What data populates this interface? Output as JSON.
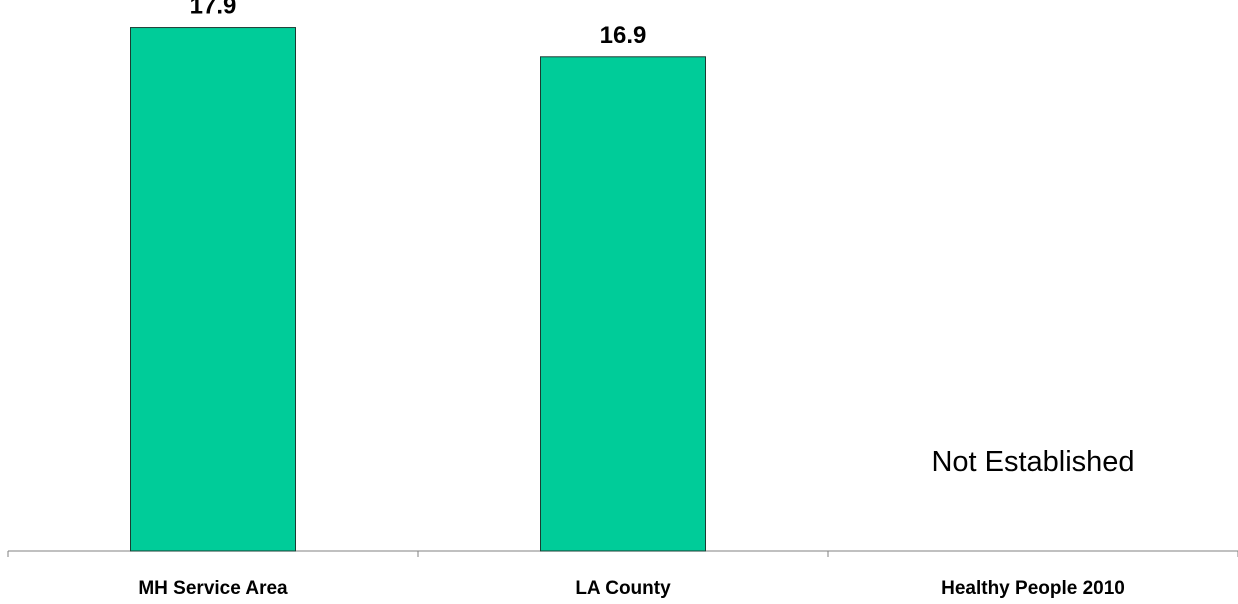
{
  "chart_data": {
    "type": "bar",
    "categories": [
      "MH Service Area",
      "LA County",
      "Healthy People 2010"
    ],
    "values": [
      17.9,
      16.9,
      null
    ],
    "value_labels": [
      "17.9",
      "16.9",
      ""
    ],
    "annotations": [
      "",
      "",
      "Not Established"
    ],
    "title": "",
    "xlabel": "",
    "ylabel": "",
    "ylim": [
      0,
      18.5
    ],
    "grid": false,
    "legend": "none",
    "colors": {
      "bar_fill": "#00CC99",
      "bar_stroke": "#1a3d33",
      "axis": "#808080"
    }
  }
}
